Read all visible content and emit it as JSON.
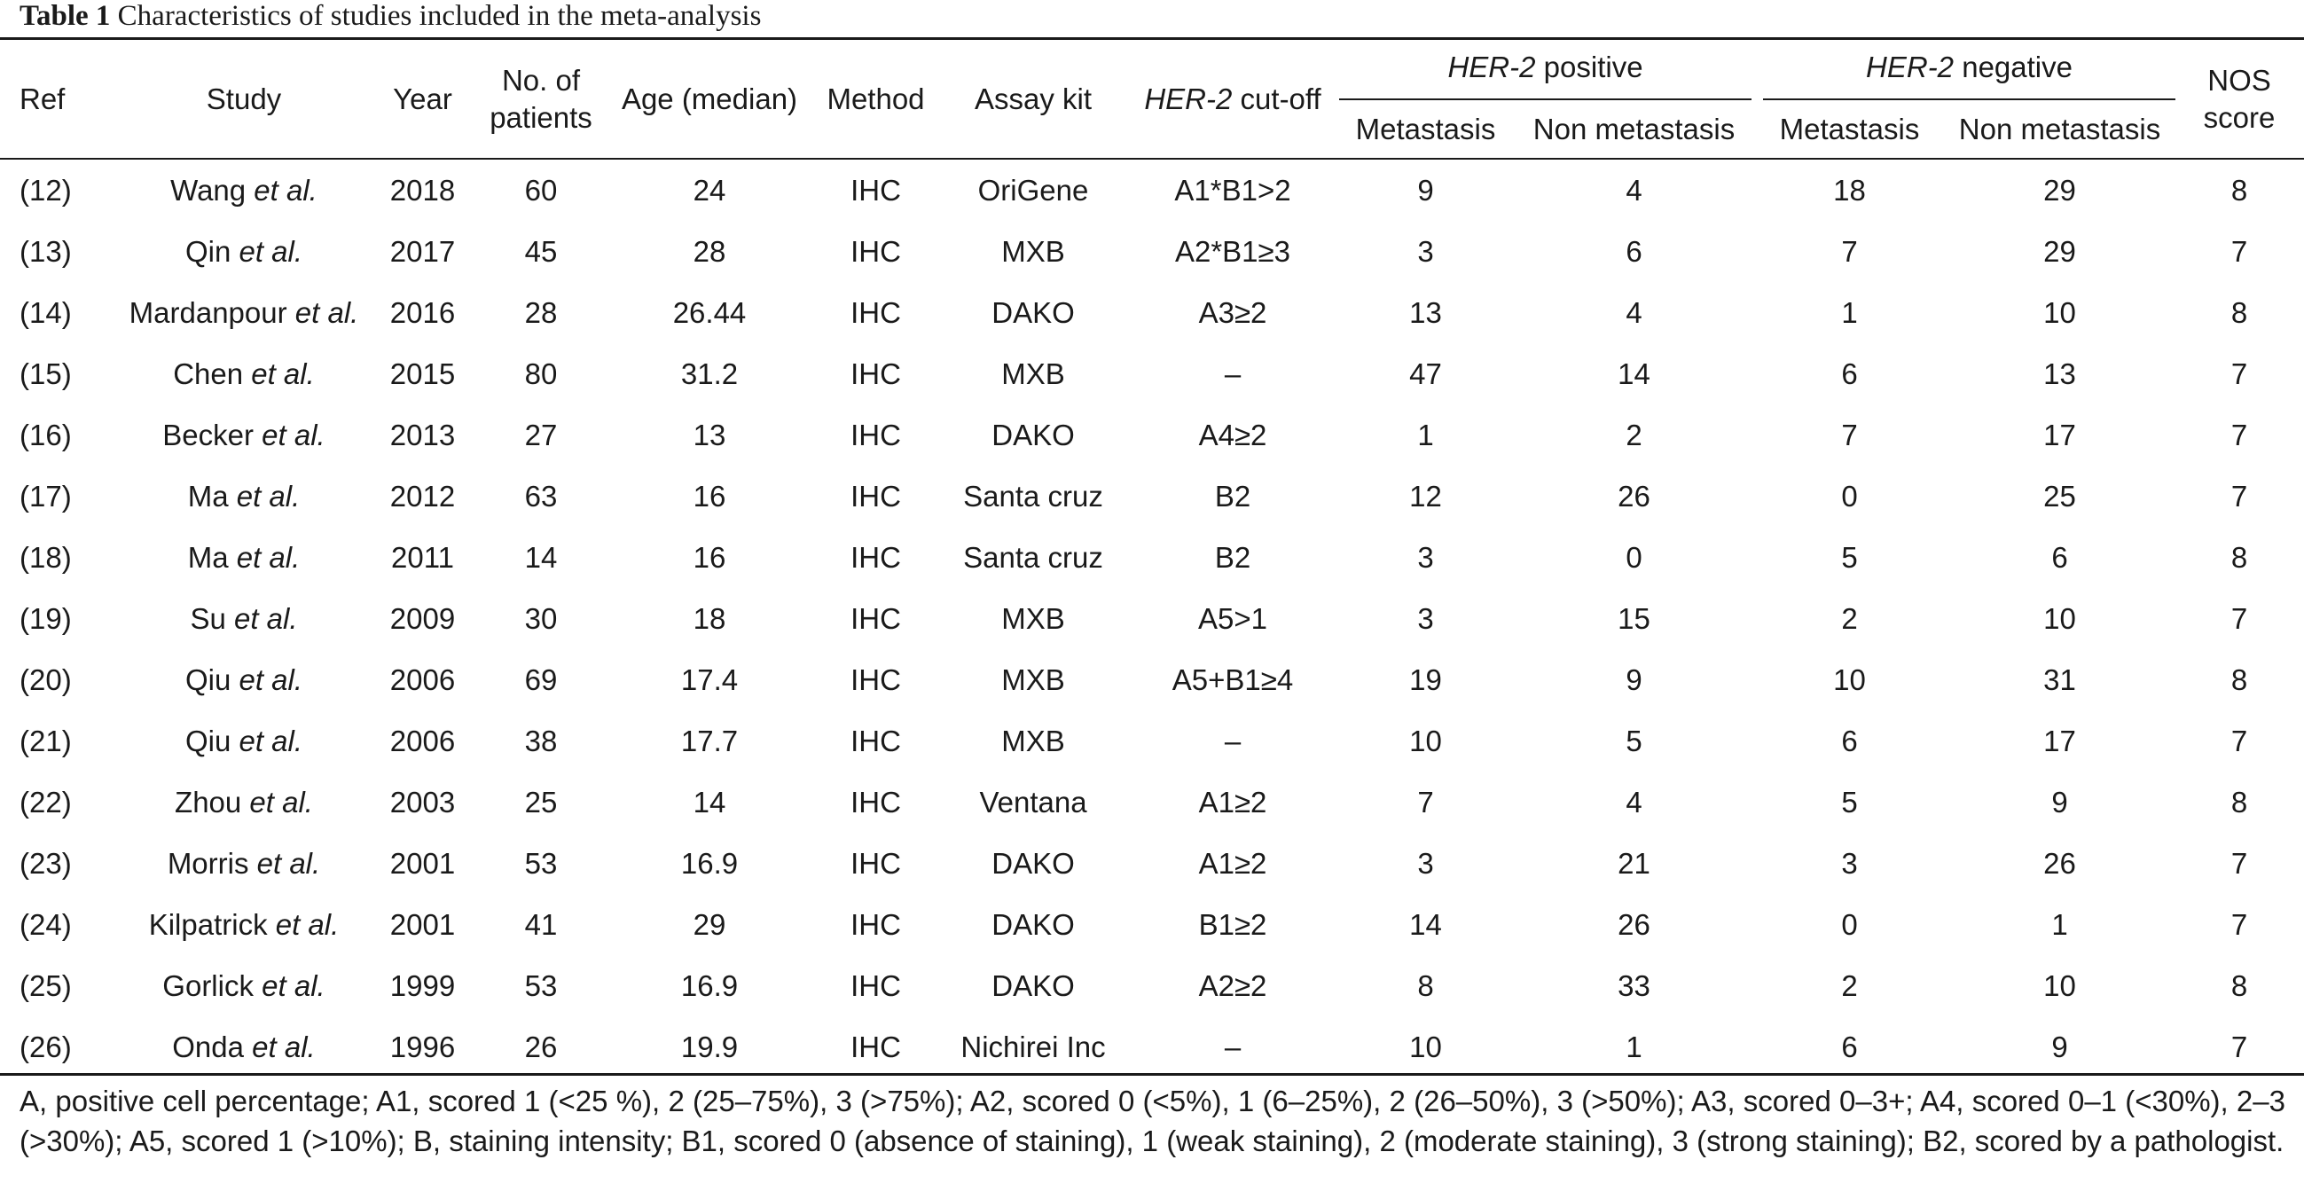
{
  "caption": {
    "label": "Table 1",
    "text": "Characteristics of studies included in the meta-analysis"
  },
  "header": {
    "ref": "Ref",
    "study": "Study",
    "year": "Year",
    "patients_line1": "No. of",
    "patients_line2": "patients",
    "age": "Age (median)",
    "method": "Method",
    "assay": "Assay kit",
    "cutoff_italic": "HER-2",
    "cutoff_rest": " cut-off",
    "pos_italic": "HER-2",
    "pos_rest": " positive",
    "neg_italic": "HER-2",
    "neg_rest": " negative",
    "metastasis": "Metastasis",
    "non_metastasis": "Non metastasis",
    "nos_line1": "NOS",
    "nos_line2": "score"
  },
  "rows": [
    {
      "ref": "(12)",
      "author": "Wang",
      "etal": " et al.",
      "year": "2018",
      "patients": "60",
      "age": "24",
      "method": "IHC",
      "assay": "OriGene",
      "cutoff": "A1*B1>2",
      "pos_met": "9",
      "pos_non": "4",
      "neg_met": "18",
      "neg_non": "29",
      "nos": "8"
    },
    {
      "ref": "(13)",
      "author": "Qin",
      "etal": " et al.",
      "year": "2017",
      "patients": "45",
      "age": "28",
      "method": "IHC",
      "assay": "MXB",
      "cutoff": "A2*B1≥3",
      "pos_met": "3",
      "pos_non": "6",
      "neg_met": "7",
      "neg_non": "29",
      "nos": "7"
    },
    {
      "ref": "(14)",
      "author": "Mardanpour",
      "etal": " et al.",
      "year": "2016",
      "patients": "28",
      "age": "26.44",
      "method": "IHC",
      "assay": "DAKO",
      "cutoff": "A3≥2",
      "pos_met": "13",
      "pos_non": "4",
      "neg_met": "1",
      "neg_non": "10",
      "nos": "8"
    },
    {
      "ref": "(15)",
      "author": "Chen",
      "etal": " et al.",
      "year": "2015",
      "patients": "80",
      "age": "31.2",
      "method": "IHC",
      "assay": "MXB",
      "cutoff": "–",
      "pos_met": "47",
      "pos_non": "14",
      "neg_met": "6",
      "neg_non": "13",
      "nos": "7"
    },
    {
      "ref": "(16)",
      "author": "Becker",
      "etal": " et al.",
      "year": "2013",
      "patients": "27",
      "age": "13",
      "method": "IHC",
      "assay": "DAKO",
      "cutoff": "A4≥2",
      "pos_met": "1",
      "pos_non": "2",
      "neg_met": "7",
      "neg_non": "17",
      "nos": "7"
    },
    {
      "ref": "(17)",
      "author": "Ma",
      "etal": " et al.",
      "year": "2012",
      "patients": "63",
      "age": "16",
      "method": "IHC",
      "assay": "Santa cruz",
      "cutoff": "B2",
      "pos_met": "12",
      "pos_non": "26",
      "neg_met": "0",
      "neg_non": "25",
      "nos": "7"
    },
    {
      "ref": "(18)",
      "author": "Ma",
      "etal": " et al.",
      "year": "2011",
      "patients": "14",
      "age": "16",
      "method": "IHC",
      "assay": "Santa cruz",
      "cutoff": "B2",
      "pos_met": "3",
      "pos_non": "0",
      "neg_met": "5",
      "neg_non": "6",
      "nos": "8"
    },
    {
      "ref": "(19)",
      "author": "Su",
      "etal": " et al.",
      "year": "2009",
      "patients": "30",
      "age": "18",
      "method": "IHC",
      "assay": "MXB",
      "cutoff": "A5>1",
      "pos_met": "3",
      "pos_non": "15",
      "neg_met": "2",
      "neg_non": "10",
      "nos": "7"
    },
    {
      "ref": "(20)",
      "author": "Qiu",
      "etal": " et al.",
      "year": "2006",
      "patients": "69",
      "age": "17.4",
      "method": "IHC",
      "assay": "MXB",
      "cutoff": "A5+B1≥4",
      "pos_met": "19",
      "pos_non": "9",
      "neg_met": "10",
      "neg_non": "31",
      "nos": "8"
    },
    {
      "ref": "(21)",
      "author": "Qiu",
      "etal": " et al.",
      "year": "2006",
      "patients": "38",
      "age": "17.7",
      "method": "IHC",
      "assay": "MXB",
      "cutoff": "–",
      "pos_met": "10",
      "pos_non": "5",
      "neg_met": "6",
      "neg_non": "17",
      "nos": "7"
    },
    {
      "ref": "(22)",
      "author": "Zhou",
      "etal": " et al.",
      "year": "2003",
      "patients": "25",
      "age": "14",
      "method": "IHC",
      "assay": "Ventana",
      "cutoff": "A1≥2",
      "pos_met": "7",
      "pos_non": "4",
      "neg_met": "5",
      "neg_non": "9",
      "nos": "8"
    },
    {
      "ref": "(23)",
      "author": "Morris",
      "etal": " et al.",
      "year": "2001",
      "patients": "53",
      "age": "16.9",
      "method": "IHC",
      "assay": "DAKO",
      "cutoff": "A1≥2",
      "pos_met": "3",
      "pos_non": "21",
      "neg_met": "3",
      "neg_non": "26",
      "nos": "7"
    },
    {
      "ref": "(24)",
      "author": "Kilpatrick",
      "etal": " et al.",
      "year": "2001",
      "patients": "41",
      "age": "29",
      "method": "IHC",
      "assay": "DAKO",
      "cutoff": "B1≥2",
      "pos_met": "14",
      "pos_non": "26",
      "neg_met": "0",
      "neg_non": "1",
      "nos": "7"
    },
    {
      "ref": "(25)",
      "author": "Gorlick",
      "etal": " et al.",
      "year": "1999",
      "patients": "53",
      "age": "16.9",
      "method": "IHC",
      "assay": "DAKO",
      "cutoff": "A2≥2",
      "pos_met": "8",
      "pos_non": "33",
      "neg_met": "2",
      "neg_non": "10",
      "nos": "8"
    },
    {
      "ref": "(26)",
      "author": "Onda",
      "etal": " et al.",
      "year": "1996",
      "patients": "26",
      "age": "19.9",
      "method": "IHC",
      "assay": "Nichirei Inc",
      "cutoff": "–",
      "pos_met": "10",
      "pos_non": "1",
      "neg_met": "6",
      "neg_non": "9",
      "nos": "7"
    }
  ],
  "footnote": "A, positive cell percentage; A1, scored 1 (<25 %), 2 (25–75%), 3 (>75%); A2, scored 0 (<5%), 1 (6–25%), 2 (26–50%), 3 (>50%); A3, scored 0–3+; A4, scored 0–1 (<30%), 2–3 (>30%); A5, scored 1 (>10%); B, staining intensity; B1, scored 0 (absence of staining), 1 (weak staining), 2 (moderate staining), 3 (strong staining); B2, scored by a pathologist."
}
